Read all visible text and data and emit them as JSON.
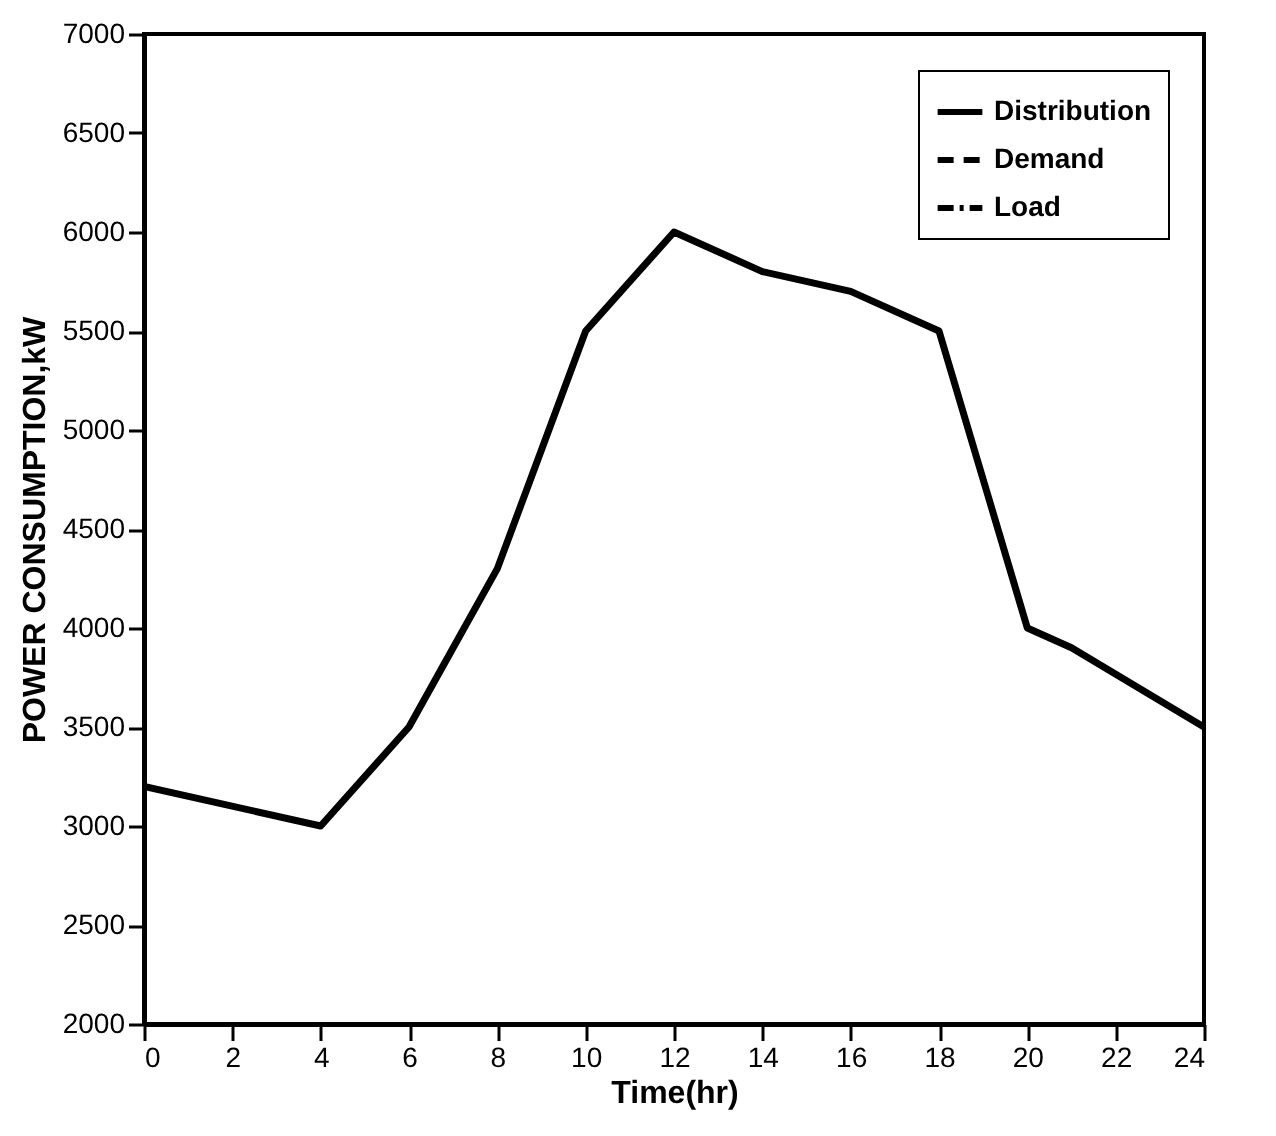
{
  "chart_data": {
    "type": "line",
    "xlabel": "Time(hr)",
    "ylabel": "POWER CONSUMPTION,kW",
    "x": [
      0,
      4,
      6,
      7,
      8,
      10,
      12,
      14,
      16,
      18,
      20,
      21,
      24
    ],
    "series": [
      {
        "name": "Distribution",
        "color": "#000000",
        "line_style": "solid",
        "values": [
          3200,
          3000,
          3500,
          3900,
          4300,
          5500,
          6000,
          5800,
          5700,
          5500,
          4000,
          3900,
          3500
        ]
      },
      {
        "name": "Demand",
        "color": "#000000",
        "line_style": "dashed",
        "values": [
          null,
          null,
          null,
          null,
          null,
          null,
          null,
          null,
          null,
          null,
          null,
          null,
          null
        ]
      },
      {
        "name": "Load",
        "color": "#000000",
        "line_style": "dashdot",
        "values": [
          null,
          null,
          null,
          null,
          null,
          null,
          null,
          null,
          null,
          null,
          null,
          null,
          null
        ]
      }
    ],
    "xlim": [
      0,
      24
    ],
    "xticks": [
      0,
      2,
      4,
      6,
      8,
      10,
      12,
      14,
      16,
      18,
      20,
      22,
      24
    ],
    "ylim": [
      2000,
      7000
    ],
    "yticks": [
      2000,
      2500,
      3000,
      3500,
      4000,
      4500,
      5000,
      5500,
      6000,
      6500,
      7000
    ],
    "grid": false,
    "legend": "top right",
    "marker": "none"
  }
}
